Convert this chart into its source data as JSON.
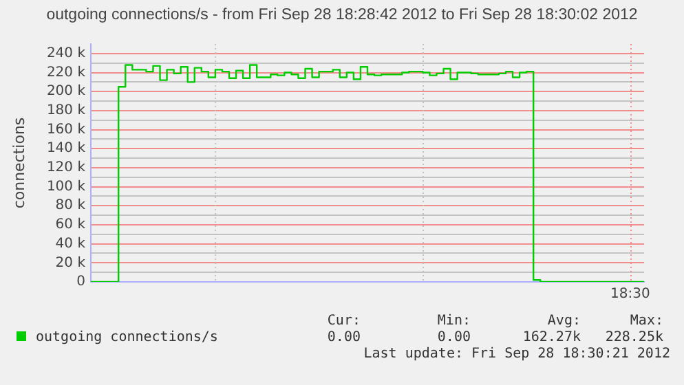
{
  "chart_data": {
    "type": "step",
    "title": "outgoing connections/s - from Fri Sep 28 18:28:42 2012 to Fri Sep 28 18:30:02 2012",
    "ylabel": "connections",
    "categories": [
      null,
      null,
      null,
      null,
      null,
      null,
      null,
      null,
      null,
      null,
      null,
      null,
      null,
      null,
      null,
      null,
      null,
      null,
      null,
      null,
      null,
      null,
      null,
      null,
      null,
      null,
      null,
      null,
      null,
      null,
      null,
      null,
      null,
      null,
      null,
      null,
      null,
      null,
      null,
      null,
      null,
      null,
      null,
      null,
      null,
      null,
      null,
      null,
      null,
      null,
      null,
      null,
      null,
      null,
      null,
      null,
      null,
      null,
      null,
      null,
      null,
      null,
      null,
      null,
      null,
      null,
      null,
      null,
      null,
      null,
      null,
      null,
      null,
      null,
      null,
      null,
      null,
      null,
      null,
      null,
      null
    ],
    "series": [
      {
        "name": "outgoing connections/s",
        "color": "#00cc00",
        "values": [
          0,
          0,
          0,
          0,
          0,
          205000,
          228000,
          223000,
          223000,
          221000,
          227000,
          212000,
          223000,
          219000,
          226000,
          210000,
          225000,
          221000,
          215000,
          223000,
          221000,
          214000,
          222000,
          214000,
          228000,
          215000,
          215000,
          218000,
          217000,
          220000,
          218000,
          214000,
          224000,
          215000,
          221000,
          221000,
          223000,
          215000,
          220000,
          213000,
          226000,
          218000,
          217000,
          218000,
          218000,
          218000,
          220000,
          221000,
          221000,
          220000,
          217000,
          219000,
          224000,
          213000,
          220000,
          220000,
          219000,
          218000,
          218000,
          218000,
          219000,
          221000,
          215000,
          220000,
          221000,
          2000,
          0,
          0,
          0,
          0,
          0,
          0,
          0,
          0,
          0,
          0,
          0,
          0,
          0,
          0,
          0
        ]
      }
    ],
    "ylim": [
      0,
      250000
    ],
    "yticks": [
      {
        "value": 0,
        "label": "0"
      },
      {
        "value": 10000,
        "label": null
      },
      {
        "value": 20000,
        "label": "20 k"
      },
      {
        "value": 30000,
        "label": null
      },
      {
        "value": 40000,
        "label": "40 k"
      },
      {
        "value": 50000,
        "label": null
      },
      {
        "value": 60000,
        "label": "60 k"
      },
      {
        "value": 70000,
        "label": null
      },
      {
        "value": 80000,
        "label": "80 k"
      },
      {
        "value": 90000,
        "label": null
      },
      {
        "value": 100000,
        "label": "100 k"
      },
      {
        "value": 110000,
        "label": null
      },
      {
        "value": 120000,
        "label": "120 k"
      },
      {
        "value": 130000,
        "label": null
      },
      {
        "value": 140000,
        "label": "140 k"
      },
      {
        "value": 150000,
        "label": null
      },
      {
        "value": 160000,
        "label": "160 k"
      },
      {
        "value": 170000,
        "label": null
      },
      {
        "value": 180000,
        "label": "180 k"
      },
      {
        "value": 190000,
        "label": null
      },
      {
        "value": 200000,
        "label": "200 k"
      },
      {
        "value": 210000,
        "label": null
      },
      {
        "value": 220000,
        "label": "220 k"
      },
      {
        "value": 230000,
        "label": null
      },
      {
        "value": 240000,
        "label": "240 k"
      }
    ],
    "grid": true,
    "legend": "bottom left",
    "marker": "none",
    "annotations": [
      "Cur:",
      "Min:",
      "Avg:",
      "Max:",
      "0.00",
      "0.00",
      "162.27k",
      "228.25k",
      "Last update: Fri Sep 28 18:30:21 2012",
      "18:30"
    ]
  }
}
